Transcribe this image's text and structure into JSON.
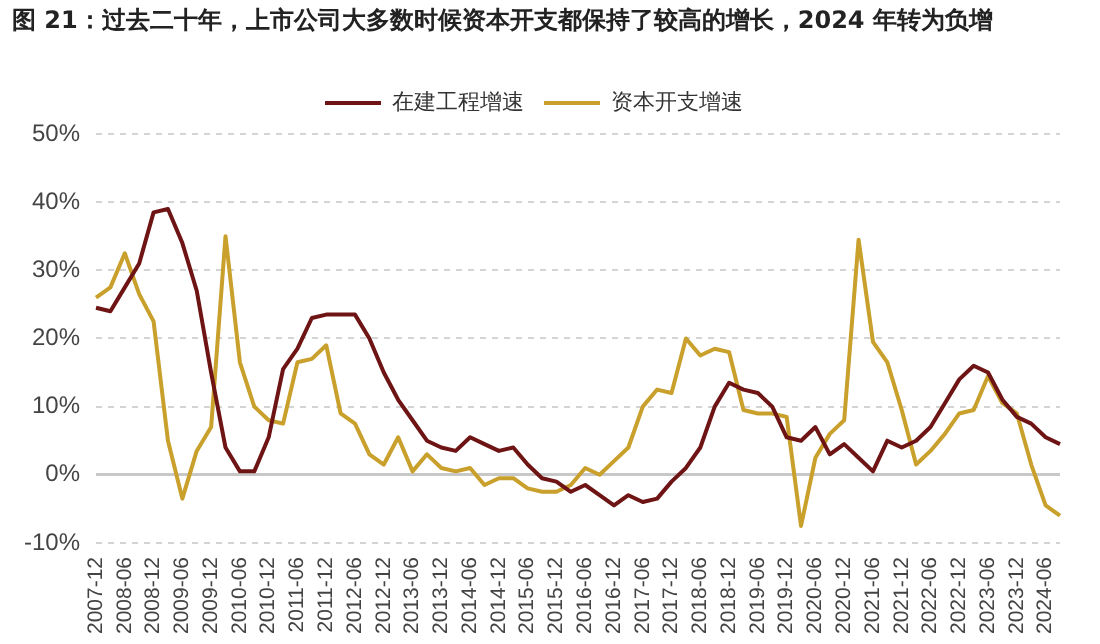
{
  "chart_data": {
    "type": "line",
    "title": "图 21：过去二十年，上市公司大多数时候资本开支都保持了较高的增长，2024 年转为负增",
    "categories": [
      "2007-12",
      null,
      "2008-06",
      null,
      "2008-12",
      null,
      "2009-06",
      null,
      "2009-12",
      null,
      "2010-06",
      null,
      "2010-12",
      null,
      "2011-06",
      null,
      "2011-12",
      null,
      "2012-06",
      null,
      "2012-12",
      null,
      "2013-06",
      null,
      "2013-12",
      null,
      "2014-06",
      null,
      "2014-12",
      null,
      "2015-06",
      null,
      "2015-12",
      null,
      "2016-06",
      null,
      "2016-12",
      null,
      "2017-06",
      null,
      "2017-12",
      null,
      "2018-06",
      null,
      "2018-12",
      null,
      "2019-06",
      null,
      "2019-12",
      null,
      "2020-06",
      null,
      "2020-12",
      null,
      "2021-06",
      null,
      "2021-12",
      null,
      "2022-06",
      null,
      "2022-12",
      null,
      "2023-06",
      null,
      "2023-12",
      null,
      "2024-06",
      null
    ],
    "series": [
      {
        "name": "在建工程增速",
        "color": "#6e1414",
        "values": [
          24.5,
          24,
          27.5,
          31,
          38.5,
          39,
          34,
          27,
          15,
          4,
          0.5,
          0.5,
          5.5,
          15.5,
          18.5,
          23,
          23.5,
          23.5,
          23.5,
          20,
          15,
          11,
          8,
          5,
          4,
          3.5,
          5.5,
          4.5,
          3.5,
          4,
          1.5,
          -0.5,
          -1,
          -2.5,
          -1.5,
          -3,
          -4.5,
          -3,
          -4,
          -3.5,
          -1,
          1,
          4,
          10,
          13.5,
          12.5,
          12,
          10,
          5.5,
          5,
          7,
          3,
          4.5,
          2.5,
          0.5,
          5,
          4,
          5,
          7,
          10.5,
          14,
          16,
          15,
          11,
          8.5,
          7.5,
          5.5,
          4.5
        ]
      },
      {
        "name": "资本开支增速",
        "color": "#c9a02c",
        "values": [
          26,
          27.5,
          32.5,
          26.5,
          22.5,
          5,
          -3.5,
          3.5,
          7,
          35,
          16.5,
          10,
          8,
          7.5,
          16.5,
          17,
          19,
          9,
          7.5,
          3,
          1.5,
          5.5,
          0.5,
          3,
          1,
          0.5,
          1,
          -1.5,
          -0.5,
          -0.5,
          -2,
          -2.5,
          -2.5,
          -1.5,
          1,
          0,
          2,
          4,
          10,
          12.5,
          12,
          20,
          17.5,
          18.5,
          18,
          9.5,
          9,
          9,
          8.5,
          -7.5,
          2.5,
          6,
          8,
          34.5,
          19.5,
          16.5,
          9.5,
          1.5,
          3.5,
          6,
          9,
          9.5,
          14.5,
          10.5,
          9,
          1.5,
          -4.5,
          -6
        ]
      }
    ],
    "ylim": [
      -10,
      50
    ],
    "yticks": [
      {
        "value": -10,
        "label": "-10%"
      },
      {
        "value": 0,
        "label": "0%"
      },
      {
        "value": 10,
        "label": "10%"
      },
      {
        "value": 20,
        "label": "20%"
      },
      {
        "value": 30,
        "label": "30%"
      },
      {
        "value": 40,
        "label": "40%"
      },
      {
        "value": 50,
        "label": "50%"
      }
    ],
    "grid": "y",
    "legend": "top",
    "marker": "none",
    "line_style": "solid"
  }
}
